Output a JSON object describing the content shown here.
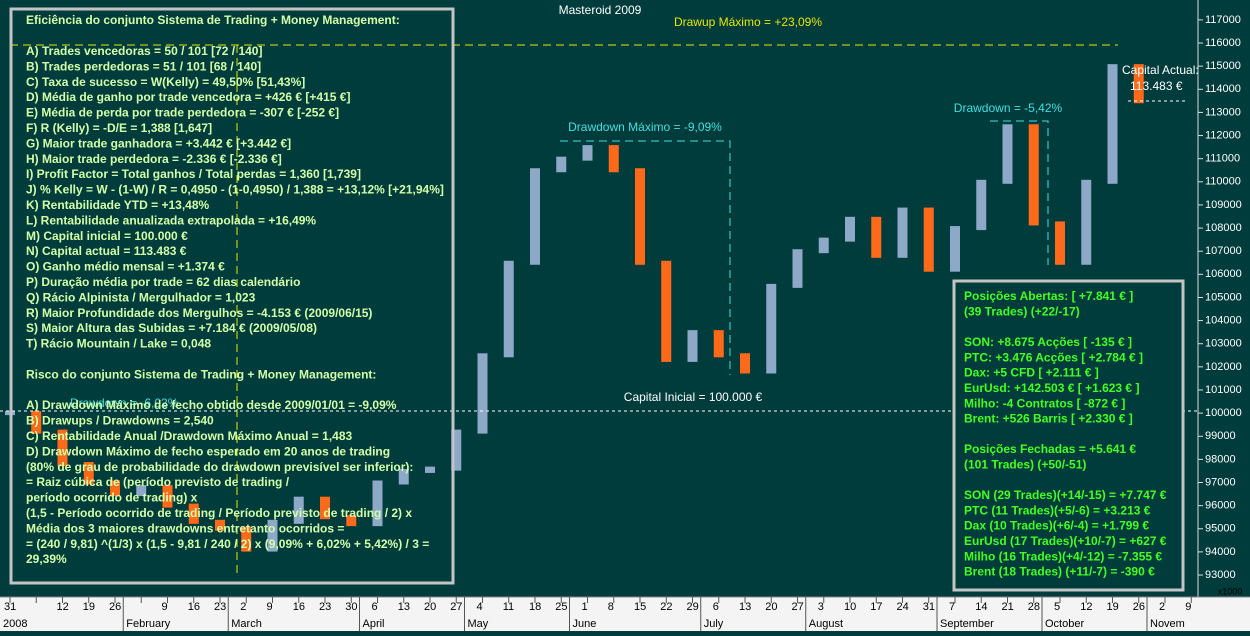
{
  "chart_data": {
    "type": "bar",
    "title": "Masteroid 2009",
    "categories": [
      "31",
      null,
      "12",
      "19",
      "26",
      null,
      "9",
      "16",
      "23",
      "2",
      "9",
      "16",
      "23",
      "30",
      "6",
      "13",
      "20",
      "27",
      "4",
      "11",
      "18",
      "25",
      "1",
      "8",
      "15",
      "22",
      "29",
      "6",
      "13",
      "20",
      "27",
      "3",
      "10",
      "17",
      "24",
      "31",
      "7",
      "14",
      "21",
      "28",
      "5",
      "12",
      "19",
      "26",
      "2",
      "9"
    ],
    "months": [
      {
        "label": "2008",
        "at": 0
      },
      {
        "label": "February",
        "at": 5
      },
      {
        "label": "March",
        "at": 9
      },
      {
        "label": "April",
        "at": 14
      },
      {
        "label": "May",
        "at": 18
      },
      {
        "label": "June",
        "at": 22
      },
      {
        "label": "July",
        "at": 27
      },
      {
        "label": "August",
        "at": 31
      },
      {
        "label": "September",
        "at": 36
      },
      {
        "label": "October",
        "at": 40
      },
      {
        "label": "Novem",
        "at": 44
      }
    ],
    "values": [
      100000,
      99200,
      97800,
      97000,
      96500,
      96800,
      96000,
      95300,
      95000,
      94100,
      95300,
      96300,
      95500,
      95200,
      97000,
      97500,
      97600,
      99200,
      102500,
      106500,
      110500,
      111000,
      111500,
      110500,
      106500,
      102300,
      103500,
      102500,
      101800,
      105500,
      107000,
      107500,
      108400,
      106800,
      108800,
      106200,
      108000,
      110000,
      112400,
      108200,
      106500,
      110000,
      115000,
      113483,
      null,
      null
    ],
    "up_color": "#8ea8c8",
    "down_color": "#ff6a1a",
    "ylim": [
      92050,
      117860
    ],
    "yticks": [
      93000,
      94000,
      95000,
      96000,
      97000,
      98000,
      99000,
      100000,
      101000,
      102000,
      103000,
      104000,
      105000,
      106000,
      107000,
      108000,
      109000,
      110000,
      111000,
      112000,
      113000,
      114000,
      115000,
      116000,
      117000
    ],
    "scale_note": "x1000",
    "annotations": {
      "drawup": "Drawup Máximo = +23,09%",
      "drawdown_max": "Drawdown Máximo = -9,09%",
      "drawdown_last": "Drawdown = -5,42%",
      "drawdown_hidden": "Drawdown = -6,02%",
      "capital_initial": "Capital Inicial = 100.000 €",
      "capital_actual_label": "Capital Actual:",
      "capital_actual_value": "113.483 €"
    }
  },
  "left_panel": {
    "sections": [
      [
        "Eficiência do conjunto Sistema de Trading + Money Management:"
      ],
      [
        "A) Trades vencedoras = 50 / 101   [72 / 140]",
        "B) Trades perdedoras = 51 / 101   [68 / 140]",
        "C) Taxa de sucesso = W(Kelly) = 49,50%   [51,43%]",
        "D) Média de ganho por trade vencedora = +426 €   [+415 €]",
        "E) Média de perda por trade perdedora = -307 €   [-252 €]",
        "F) R (Kelly) = -D/E = 1,388   [1,647]",
        "G) Maior trade ganhadora = +3.442 €   [+3.442 €]",
        "H) Maior trade perdedora = -2.336 €   [-2.336 €]",
        "I) Profit Factor = Total ganhos / Total perdas = 1,360   [1,739]",
        "J) % Kelly = W - (1-W) / R = 0,4950 - (1-0,4950) / 1,388 = +13,12%   [+21,94%]",
        "K) Rentabilidade YTD = +13,48%",
        "L) Rentabilidade anualizada extrapolada = +16,49%",
        "M) Capital inicial = 100.000 €",
        "N) Capital actual = 113.483 €",
        "O) Ganho médio mensal = +1.374 €",
        "P) Duração média por trade = 62 dias calendário",
        "Q) Rácio Alpinista / Mergulhador = 1,023",
        "R) Maior Profundidade dos Mergulhos = -4.153 € (2009/06/15)",
        "S) Maior Altura das Subidas = +7.184 € (2009/05/08)",
        "T) Rácio Mountain / Lake = 0,048"
      ],
      [
        "Risco do conjunto Sistema de Trading + Money Management:"
      ],
      [
        "A) Drawdown Máximo de fecho obtido desde 2009/01/01 = -9,09%",
        "B) Drawups / Drawdowns = 2,540",
        "C) Rentabilidade Anual /Drawdown Máximo Anual = 1,483",
        "D) Drawdown Máximo de fecho esperado em 20 anos de trading",
        "(80% de grau de probabilidade do drawdown previsível ser inferior):",
        "= Raiz cúbica de (período previsto de trading /",
        "período ocorrido de trading) x",
        "(1,5 - Período ocorrido de trading / Período previsto de trading / 2) x",
        "Média dos 3 maiores drawdowns entretanto ocorridos =",
        "= (240 / 9,81) ^(1/3) x (1,5 - 9,81 / 240 / 2) x (9,09% + 6,02% + 5,42%) / 3 =",
        "29,39%"
      ]
    ]
  },
  "right_panel": {
    "sections": [
      [
        "Posições Abertas: [ +7.841 € ]",
        "(39 Trades) (+22/-17)"
      ],
      [
        "SON: +8.675 Acções [ -135 € ]",
        "PTC: +3.476 Acções [ +2.784 € ]",
        "Dax: +5 CFD [ +2.111 € ]",
        "EurUsd: +142.503 € [ +1.623 € ]",
        "Milho: -4 Contratos [ -872 € ]",
        "Brent: +526 Barris [ +2.330 € ]"
      ],
      [
        "Posições Fechadas = +5.641 €",
        "(101 Trades) (+50/-51)"
      ],
      [
        "SON (29 Trades)(+14/-15) = +7.747 €",
        "PTC (11 Trades)(+5/-6) = +3.213 €",
        "Dax (10 Trades)(+6/-4) = +1.799 €",
        "EurUsd (17 Trades)(+10/-7) = +627 €",
        "Milho (16 Trades)(+4/-12) = -7.355 €",
        "Brent (18 Trades) (+11/-7) = -390 €"
      ]
    ]
  }
}
